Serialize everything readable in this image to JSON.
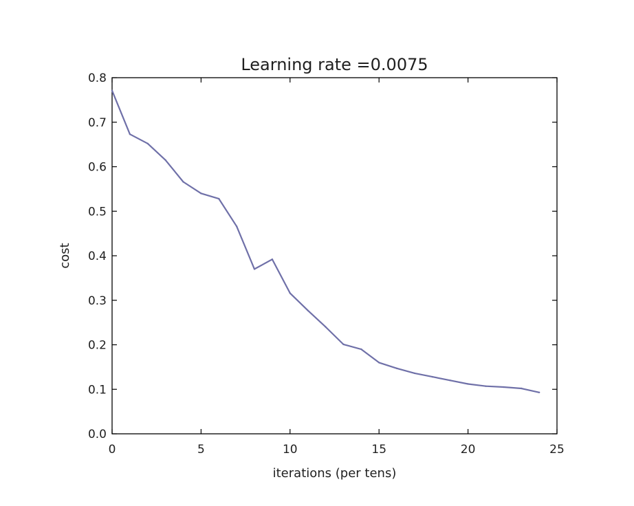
{
  "chart_data": {
    "type": "line",
    "title": "Learning rate =0.0075",
    "xlabel": "iterations (per tens)",
    "ylabel": "cost",
    "xlim": [
      0,
      25
    ],
    "ylim": [
      0.0,
      0.8
    ],
    "xticks": [
      "0",
      "5",
      "10",
      "15",
      "20",
      "25"
    ],
    "yticks": [
      "0.0",
      "0.1",
      "0.2",
      "0.3",
      "0.4",
      "0.5",
      "0.6",
      "0.7",
      "0.8"
    ],
    "grid": false,
    "series": [
      {
        "color": "#6f70a8",
        "x": [
          0,
          1,
          2,
          3,
          4,
          5,
          6,
          7,
          8,
          9,
          10,
          11,
          12,
          13,
          14,
          15,
          16,
          17,
          18,
          19,
          20,
          21,
          22,
          23,
          24
        ],
        "y": [
          0.771,
          0.673,
          0.652,
          0.615,
          0.566,
          0.54,
          0.528,
          0.466,
          0.37,
          0.392,
          0.316,
          0.277,
          0.24,
          0.201,
          0.19,
          0.16,
          0.147,
          0.136,
          0.128,
          0.12,
          0.112,
          0.107,
          0.105,
          0.102,
          0.093
        ]
      }
    ]
  }
}
